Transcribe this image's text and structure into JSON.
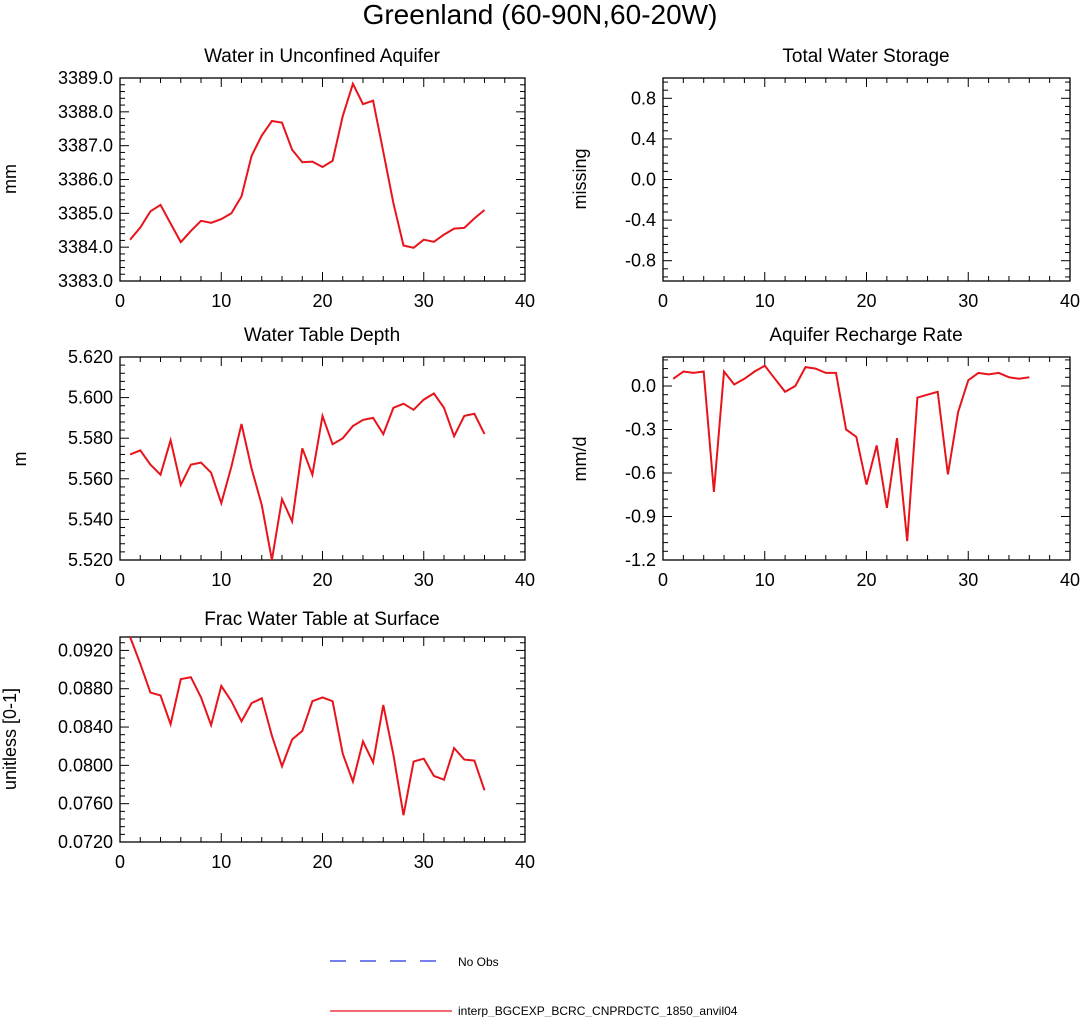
{
  "figure": {
    "title": "Greenland (60-90N,60-20W)",
    "series_color": "#e8141c",
    "obs_color": "#2030e0"
  },
  "legend": {
    "entries": [
      {
        "label": "No Obs",
        "style": "dashed",
        "color": "#2030e0"
      },
      {
        "label": "interp_BGCEXP_BCRC_CNPRDCTC_1850_anvil04",
        "style": "solid",
        "color": "#e8141c"
      }
    ]
  },
  "chart_data": [
    {
      "id": "unconfined",
      "type": "line",
      "title": "Water in Unconfined Aquifer",
      "ylabel": "mm",
      "xlim": [
        0,
        40
      ],
      "ylim": [
        3383.0,
        3389.0
      ],
      "xticks": [
        "0",
        "10",
        "20",
        "30",
        "40"
      ],
      "yticks": [
        "3383.0",
        "3384.0",
        "3385.0",
        "3386.0",
        "3387.0",
        "3388.0",
        "3389.0"
      ],
      "series": [
        {
          "name": "interp_BGCEXP_BCRC_CNPRDCTC_1850_anvil04",
          "x": [
            1,
            2,
            3,
            4,
            5,
            6,
            7,
            8,
            9,
            10,
            11,
            12,
            13,
            14,
            15,
            16,
            17,
            18,
            19,
            20,
            21,
            22,
            23,
            24,
            25,
            26,
            27,
            28,
            29,
            30,
            31,
            32,
            33,
            34,
            35,
            36
          ],
          "values": [
            3384.22,
            3384.58,
            3385.06,
            3385.25,
            3384.7,
            3384.15,
            3384.48,
            3384.78,
            3384.72,
            3384.83,
            3385.0,
            3385.5,
            3386.7,
            3387.3,
            3387.73,
            3387.68,
            3386.88,
            3386.51,
            3386.53,
            3386.37,
            3386.55,
            3387.88,
            3388.83,
            3388.23,
            3388.33,
            3386.82,
            3385.3,
            3384.05,
            3383.98,
            3384.22,
            3384.16,
            3384.37,
            3384.55,
            3384.57,
            3384.85,
            3385.1
          ]
        }
      ]
    },
    {
      "id": "tws",
      "type": "line",
      "title": "Total Water Storage",
      "ylabel": "missing",
      "xlim": [
        0,
        40
      ],
      "ylim": [
        -1.0,
        1.0
      ],
      "xticks": [
        "0",
        "10",
        "20",
        "30",
        "40"
      ],
      "yticks": [
        "-0.8",
        "-0.4",
        "0.0",
        "0.4",
        "0.8"
      ],
      "series": []
    },
    {
      "id": "wtd",
      "type": "line",
      "title": "Water Table Depth",
      "ylabel": "m",
      "xlim": [
        0,
        40
      ],
      "ylim": [
        5.52,
        5.62
      ],
      "xticks": [
        "0",
        "10",
        "20",
        "30",
        "40"
      ],
      "yticks": [
        "5.520",
        "5.540",
        "5.560",
        "5.580",
        "5.600",
        "5.620"
      ],
      "series": [
        {
          "name": "interp_BGCEXP_BCRC_CNPRDCTC_1850_anvil04",
          "x": [
            1,
            2,
            3,
            4,
            5,
            6,
            7,
            8,
            9,
            10,
            11,
            12,
            13,
            14,
            15,
            16,
            17,
            18,
            19,
            20,
            21,
            22,
            23,
            24,
            25,
            26,
            27,
            28,
            29,
            30,
            31,
            32,
            33,
            34,
            35,
            36
          ],
          "values": [
            5.572,
            5.574,
            5.567,
            5.562,
            5.579,
            5.557,
            5.567,
            5.568,
            5.563,
            5.548,
            5.566,
            5.587,
            5.565,
            5.547,
            5.52,
            5.55,
            5.539,
            5.575,
            5.562,
            5.591,
            5.577,
            5.58,
            5.586,
            5.589,
            5.59,
            5.582,
            5.595,
            5.597,
            5.594,
            5.599,
            5.602,
            5.595,
            5.581,
            5.591,
            5.592,
            5.582
          ]
        }
      ]
    },
    {
      "id": "recharge",
      "type": "line",
      "title": "Aquifer Recharge Rate",
      "ylabel": "mm/d",
      "xlim": [
        0,
        40
      ],
      "ylim": [
        -1.2,
        0.2
      ],
      "xticks": [
        "0",
        "10",
        "20",
        "30",
        "40"
      ],
      "yticks": [
        "-1.2",
        "-0.9",
        "-0.6",
        "-0.3",
        "0.0"
      ],
      "series": [
        {
          "name": "interp_BGCEXP_BCRC_CNPRDCTC_1850_anvil04",
          "x": [
            1,
            2,
            3,
            4,
            5,
            6,
            7,
            8,
            9,
            10,
            11,
            12,
            13,
            14,
            15,
            16,
            17,
            18,
            19,
            20,
            21,
            22,
            23,
            24,
            25,
            26,
            27,
            28,
            29,
            30,
            31,
            32,
            33,
            34,
            35,
            36
          ],
          "values": [
            0.05,
            0.1,
            0.09,
            0.1,
            -0.73,
            0.1,
            0.01,
            0.05,
            0.1,
            0.14,
            0.05,
            -0.04,
            0.0,
            0.13,
            0.12,
            0.09,
            0.09,
            -0.3,
            -0.35,
            -0.68,
            -0.41,
            -0.84,
            -0.36,
            -1.07,
            -0.08,
            -0.06,
            -0.04,
            -0.61,
            -0.18,
            0.04,
            0.09,
            0.08,
            0.09,
            0.06,
            0.05,
            0.06
          ]
        }
      ]
    },
    {
      "id": "frac",
      "type": "line",
      "title": "Frac Water Table at Surface",
      "ylabel": "unitless [0-1]",
      "xlim": [
        0,
        40
      ],
      "ylim": [
        0.072,
        0.0934
      ],
      "xticks": [
        "0",
        "10",
        "20",
        "30",
        "40"
      ],
      "yticks": [
        "0.0720",
        "0.0760",
        "0.0800",
        "0.0840",
        "0.0880",
        "0.0920"
      ],
      "series": [
        {
          "name": "interp_BGCEXP_BCRC_CNPRDCTC_1850_anvil04",
          "x": [
            1,
            2,
            3,
            4,
            5,
            6,
            7,
            8,
            9,
            10,
            11,
            12,
            13,
            14,
            15,
            16,
            17,
            18,
            19,
            20,
            21,
            22,
            23,
            24,
            25,
            26,
            27,
            28,
            29,
            30,
            31,
            32,
            33,
            34,
            35,
            36
          ],
          "values": [
            0.0934,
            0.0906,
            0.0876,
            0.0873,
            0.0843,
            0.089,
            0.0892,
            0.0871,
            0.0842,
            0.0883,
            0.0867,
            0.0846,
            0.0865,
            0.087,
            0.0831,
            0.0799,
            0.0827,
            0.0836,
            0.0867,
            0.0871,
            0.0867,
            0.0812,
            0.0783,
            0.0825,
            0.0803,
            0.0863,
            0.0811,
            0.0748,
            0.0804,
            0.0807,
            0.0789,
            0.0785,
            0.0818,
            0.0806,
            0.0805,
            0.0774
          ]
        }
      ]
    }
  ]
}
